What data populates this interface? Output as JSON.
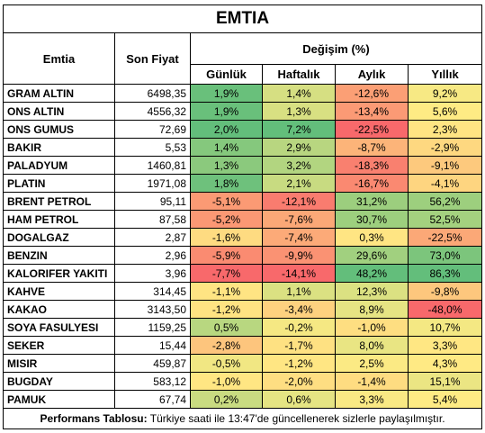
{
  "title": "EMTIA",
  "headers": {
    "commodity": "Emtia",
    "last_price": "Son Fiyat",
    "change_group": "Değişim (%)",
    "daily": "Günlük",
    "weekly": "Haftalık",
    "monthly": "Aylık",
    "yearly": "Yıllık"
  },
  "rows": [
    {
      "name": "GRAM ALTIN",
      "price": "6498,35",
      "daily": "1,9%",
      "weekly": "1,4%",
      "monthly": "-12,6%",
      "yearly": "9,2%"
    },
    {
      "name": "ONS ALTIN",
      "price": "4556,32",
      "daily": "1,9%",
      "weekly": "1,3%",
      "monthly": "-13,4%",
      "yearly": "5,6%"
    },
    {
      "name": "ONS GUMUS",
      "price": "72,69",
      "daily": "2,0%",
      "weekly": "7,2%",
      "monthly": "-22,5%",
      "yearly": "2,3%"
    },
    {
      "name": "BAKIR",
      "price": "5,53",
      "daily": "1,4%",
      "weekly": "2,9%",
      "monthly": "-8,7%",
      "yearly": "-2,9%"
    },
    {
      "name": "PALADYUM",
      "price": "1460,81",
      "daily": "1,3%",
      "weekly": "3,2%",
      "monthly": "-18,3%",
      "yearly": "-9,1%"
    },
    {
      "name": "PLATIN",
      "price": "1971,08",
      "daily": "1,8%",
      "weekly": "2,1%",
      "monthly": "-16,7%",
      "yearly": "-4,1%"
    },
    {
      "name": "BRENT PETROL",
      "price": "95,11",
      "daily": "-5,1%",
      "weekly": "-12,1%",
      "monthly": "31,2%",
      "yearly": "56,2%"
    },
    {
      "name": "HAM PETROL",
      "price": "87,58",
      "daily": "-5,2%",
      "weekly": "-7,6%",
      "monthly": "30,7%",
      "yearly": "52,5%"
    },
    {
      "name": "DOGALGAZ",
      "price": "2,87",
      "daily": "-1,6%",
      "weekly": "-7,4%",
      "monthly": "0,3%",
      "yearly": "-22,5%"
    },
    {
      "name": "BENZIN",
      "price": "2,96",
      "daily": "-5,9%",
      "weekly": "-9,9%",
      "monthly": "29,6%",
      "yearly": "73,0%"
    },
    {
      "name": "KALORIFER YAKITI",
      "price": "3,96",
      "daily": "-7,7%",
      "weekly": "-14,1%",
      "monthly": "48,2%",
      "yearly": "86,3%"
    },
    {
      "name": "KAHVE",
      "price": "314,45",
      "daily": "-1,1%",
      "weekly": "1,1%",
      "monthly": "12,3%",
      "yearly": "-9,8%"
    },
    {
      "name": "KAKAO",
      "price": "3143,50",
      "daily": "-1,2%",
      "weekly": "-3,4%",
      "monthly": "8,9%",
      "yearly": "-48,0%"
    },
    {
      "name": "SOYA FASULYESI",
      "price": "1159,25",
      "daily": "0,5%",
      "weekly": "-0,2%",
      "monthly": "-1,0%",
      "yearly": "10,7%"
    },
    {
      "name": "SEKER",
      "price": "15,44",
      "daily": "-2,8%",
      "weekly": "-1,7%",
      "monthly": "8,0%",
      "yearly": "3,3%"
    },
    {
      "name": "MISIR",
      "price": "459,87",
      "daily": "-0,5%",
      "weekly": "-1,2%",
      "monthly": "2,5%",
      "yearly": "4,3%"
    },
    {
      "name": "BUGDAY",
      "price": "583,12",
      "daily": "-1,0%",
      "weekly": "-2,0%",
      "monthly": "-1,4%",
      "yearly": "15,1%"
    },
    {
      "name": "PAMUK",
      "price": "67,74",
      "daily": "0,2%",
      "weekly": "0,6%",
      "monthly": "3,3%",
      "yearly": "5,4%"
    }
  ],
  "footer": {
    "label": "Performans Tablosu:",
    "text": " Türkiye saati ile 13:47'de güncellenerek sizlerle paylaşılmıştır."
  },
  "colors": {
    "strong_green": "#63be7b",
    "yellow": "#ffeb84",
    "strong_red": "#f8696b"
  }
}
